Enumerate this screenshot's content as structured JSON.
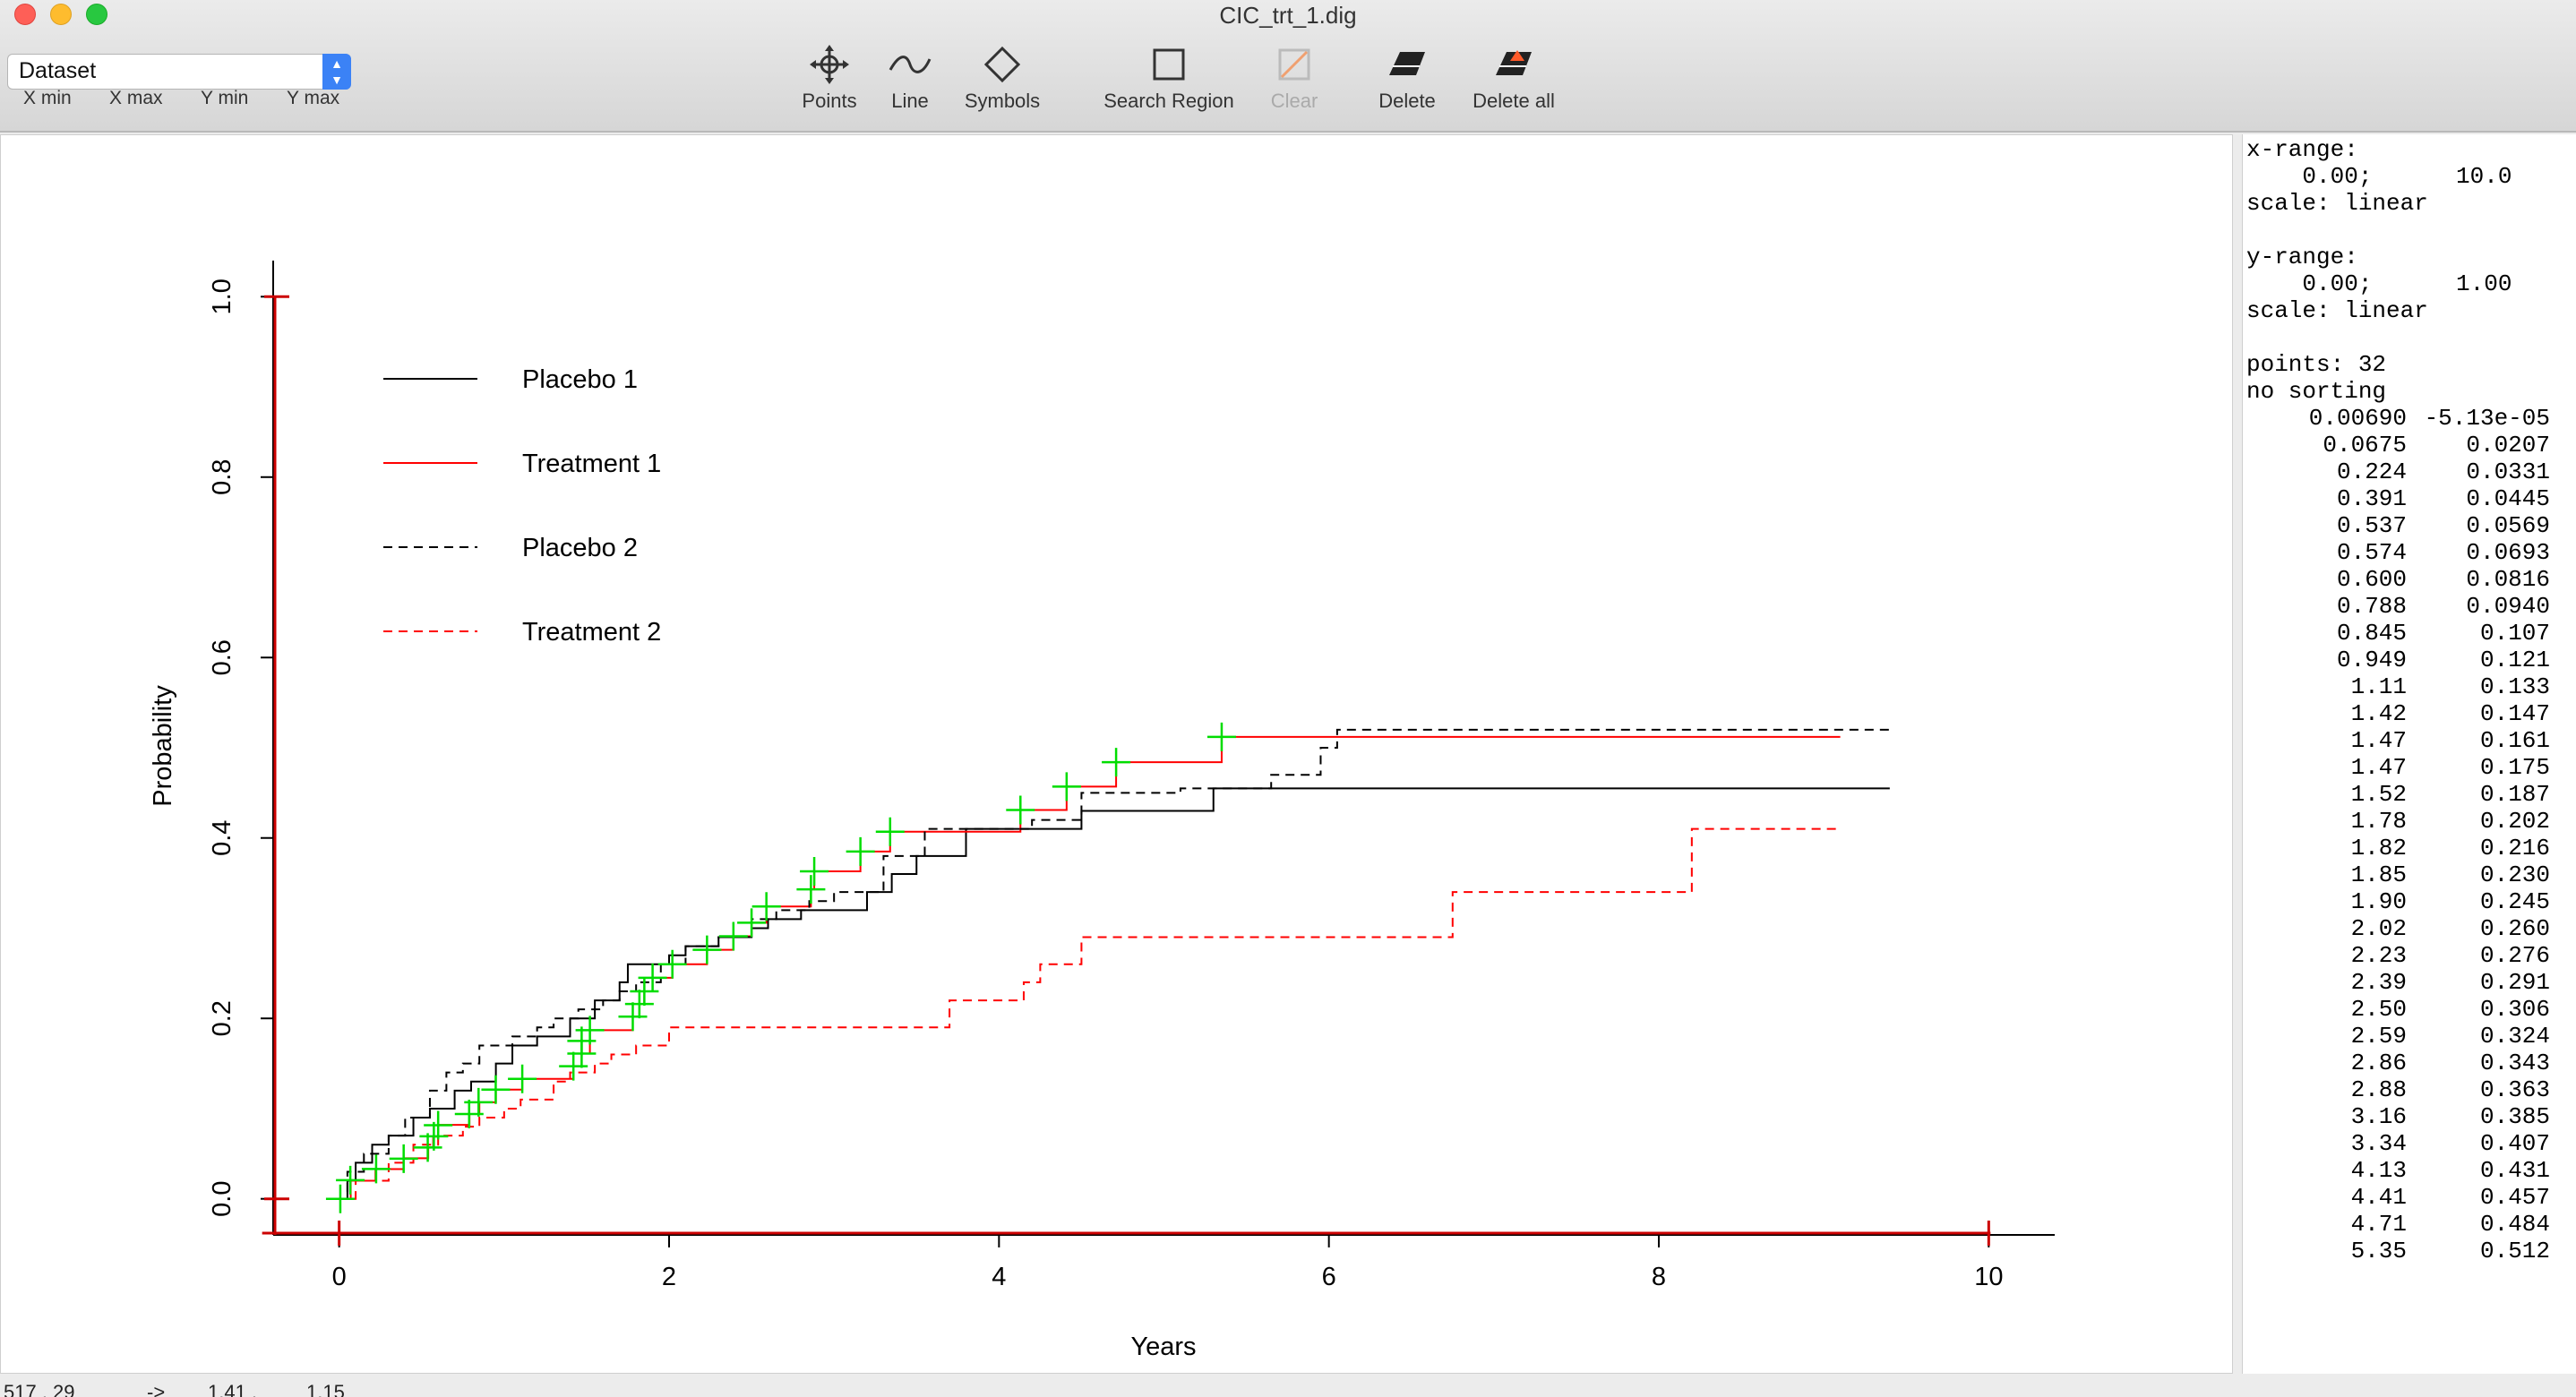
{
  "window": {
    "title": "CIC_trt_1.dig"
  },
  "toolbar": {
    "dataset": "Dataset",
    "range_buttons": [
      "X min",
      "X max",
      "Y min",
      "Y max"
    ],
    "tools": [
      {
        "label": "Points",
        "icon": "crosshair-move-icon"
      },
      {
        "label": "Line",
        "icon": "wave-line-icon"
      },
      {
        "label": "Symbols",
        "icon": "diamond-icon"
      },
      {
        "label": "Search Region",
        "icon": "square-icon"
      },
      {
        "label": "Clear",
        "icon": "clear-icon",
        "disabled": true
      },
      {
        "label": "Delete",
        "icon": "eraser-icon"
      },
      {
        "label": "Delete all",
        "icon": "eraser-all-icon"
      }
    ]
  },
  "chart_data": {
    "type": "line",
    "xlabel": "Years",
    "ylabel": "Probability",
    "xlim": [
      -0.4,
      10.4
    ],
    "ylim": [
      -0.04,
      1.04
    ],
    "xticks": [
      0,
      2,
      4,
      6,
      8,
      10
    ],
    "xtick_labels": [
      "0",
      "2",
      "4",
      "6",
      "8",
      "10"
    ],
    "yticks": [
      0.0,
      0.2,
      0.4,
      0.6,
      0.8,
      1.0
    ],
    "ytick_labels": [
      "0.0",
      "0.2",
      "0.4",
      "0.6",
      "0.8",
      "1.0"
    ],
    "legend_position": "top-left",
    "series": [
      {
        "name": "Placebo 1",
        "color": "#000000",
        "style": "solid",
        "x": [
          0,
          0.05,
          0.1,
          0.2,
          0.3,
          0.45,
          0.55,
          0.7,
          0.8,
          0.95,
          1.05,
          1.2,
          1.4,
          1.55,
          1.7,
          1.75,
          1.9,
          2.0,
          2.1,
          2.3,
          2.5,
          2.6,
          2.8,
          3.0,
          3.2,
          3.35,
          3.5,
          3.8,
          4.45,
          4.5,
          5.2,
          5.3,
          9.4
        ],
        "y": [
          0,
          0.02,
          0.04,
          0.06,
          0.07,
          0.09,
          0.1,
          0.12,
          0.13,
          0.15,
          0.17,
          0.18,
          0.2,
          0.22,
          0.24,
          0.26,
          0.26,
          0.27,
          0.28,
          0.29,
          0.3,
          0.31,
          0.32,
          0.32,
          0.34,
          0.36,
          0.38,
          0.41,
          0.41,
          0.43,
          0.43,
          0.455,
          0.455
        ]
      },
      {
        "name": "Treatment 1",
        "color": "#ff0000",
        "style": "solid",
        "x": [
          0,
          0.07,
          0.22,
          0.39,
          0.54,
          0.57,
          0.6,
          0.79,
          0.85,
          0.95,
          1.11,
          1.42,
          1.47,
          1.52,
          1.78,
          1.82,
          1.85,
          1.9,
          2.02,
          2.23,
          2.39,
          2.5,
          2.59,
          2.86,
          2.88,
          3.16,
          3.34,
          4.13,
          4.41,
          4.71,
          5.35,
          9.1
        ],
        "y": [
          0,
          0.02,
          0.033,
          0.045,
          0.057,
          0.069,
          0.082,
          0.094,
          0.107,
          0.121,
          0.133,
          0.147,
          0.161,
          0.187,
          0.202,
          0.216,
          0.23,
          0.245,
          0.26,
          0.276,
          0.291,
          0.306,
          0.324,
          0.343,
          0.363,
          0.385,
          0.407,
          0.431,
          0.457,
          0.484,
          0.512,
          0.512
        ]
      },
      {
        "name": "Placebo 2",
        "color": "#000000",
        "style": "dashed",
        "x": [
          0,
          0.05,
          0.15,
          0.3,
          0.4,
          0.55,
          0.65,
          0.75,
          0.85,
          1.05,
          1.2,
          1.3,
          1.45,
          1.6,
          1.7,
          1.8,
          1.95,
          2.1,
          2.3,
          2.5,
          2.65,
          2.85,
          3.0,
          3.3,
          3.55,
          4.2,
          4.5,
          5.1,
          5.65,
          5.95,
          6.05,
          9.4
        ],
        "y": [
          0,
          0.03,
          0.05,
          0.07,
          0.09,
          0.12,
          0.14,
          0.15,
          0.17,
          0.18,
          0.19,
          0.2,
          0.21,
          0.22,
          0.23,
          0.24,
          0.26,
          0.28,
          0.29,
          0.31,
          0.32,
          0.33,
          0.34,
          0.38,
          0.41,
          0.42,
          0.45,
          0.455,
          0.47,
          0.5,
          0.52,
          0.52
        ]
      },
      {
        "name": "Treatment 2",
        "color": "#ff0000",
        "style": "dashed",
        "x": [
          0,
          0.1,
          0.3,
          0.45,
          0.6,
          0.75,
          0.85,
          1.0,
          1.1,
          1.3,
          1.4,
          1.55,
          1.65,
          1.8,
          2.0,
          3.3,
          3.7,
          4.15,
          4.25,
          4.5,
          6.0,
          6.75,
          7.6,
          8.2,
          9.1
        ],
        "y": [
          0,
          0.02,
          0.04,
          0.06,
          0.07,
          0.08,
          0.09,
          0.1,
          0.11,
          0.13,
          0.14,
          0.15,
          0.16,
          0.17,
          0.19,
          0.19,
          0.22,
          0.24,
          0.26,
          0.29,
          0.29,
          0.34,
          0.34,
          0.41,
          0.41
        ]
      }
    ],
    "digitized_points": {
      "color": "#00dd00",
      "x": [
        0.0069,
        0.0675,
        0.224,
        0.391,
        0.537,
        0.574,
        0.6,
        0.788,
        0.845,
        0.949,
        1.11,
        1.42,
        1.47,
        1.47,
        1.52,
        1.78,
        1.82,
        1.85,
        1.9,
        2.02,
        2.23,
        2.39,
        2.5,
        2.59,
        2.86,
        2.88,
        3.16,
        3.34,
        4.13,
        4.41,
        4.71,
        5.35
      ],
      "y": [
        -5.13e-05,
        0.0207,
        0.0331,
        0.0445,
        0.0569,
        0.0693,
        0.0816,
        0.094,
        0.107,
        0.121,
        0.133,
        0.147,
        0.161,
        0.175,
        0.187,
        0.202,
        0.216,
        0.23,
        0.245,
        0.26,
        0.276,
        0.291,
        0.306,
        0.324,
        0.343,
        0.363,
        0.385,
        0.407,
        0.431,
        0.457,
        0.484,
        0.512
      ]
    },
    "calibration": {
      "color": "#cc0000",
      "x_marks": [
        0,
        10
      ],
      "y_marks": [
        0.0,
        1.0
      ]
    }
  },
  "info": {
    "xrange_label": "x-range:",
    "xrange_values": "    0.00;      10.0",
    "xscale": "scale: linear",
    "yrange_label": "y-range:",
    "yrange_values": "    0.00;      1.00",
    "yscale": "scale: linear",
    "points_count": "points: 32",
    "sorting": "no sorting",
    "points": [
      [
        "0.00690",
        "-5.13e-05"
      ],
      [
        "0.0675",
        "0.0207"
      ],
      [
        "0.224",
        "0.0331"
      ],
      [
        "0.391",
        "0.0445"
      ],
      [
        "0.537",
        "0.0569"
      ],
      [
        "0.574",
        "0.0693"
      ],
      [
        "0.600",
        "0.0816"
      ],
      [
        "0.788",
        "0.0940"
      ],
      [
        "0.845",
        "0.107"
      ],
      [
        "0.949",
        "0.121"
      ],
      [
        "1.11",
        "0.133"
      ],
      [
        "1.42",
        "0.147"
      ],
      [
        "1.47",
        "0.161"
      ],
      [
        "1.47",
        "0.175"
      ],
      [
        "1.52",
        "0.187"
      ],
      [
        "1.78",
        "0.202"
      ],
      [
        "1.82",
        "0.216"
      ],
      [
        "1.85",
        "0.230"
      ],
      [
        "1.90",
        "0.245"
      ],
      [
        "2.02",
        "0.260"
      ],
      [
        "2.23",
        "0.276"
      ],
      [
        "2.39",
        "0.291"
      ],
      [
        "2.50",
        "0.306"
      ],
      [
        "2.59",
        "0.324"
      ],
      [
        "2.86",
        "0.343"
      ],
      [
        "2.88",
        "0.363"
      ],
      [
        "3.16",
        "0.385"
      ],
      [
        "3.34",
        "0.407"
      ],
      [
        "4.13",
        "0.431"
      ],
      [
        "4.41",
        "0.457"
      ],
      [
        "4.71",
        "0.484"
      ],
      [
        "5.35",
        "0.512"
      ]
    ]
  },
  "status": {
    "pixel": "517 , 29",
    "arrow": "->",
    "value_x": "1.41 ,",
    "value_y": "1.15"
  }
}
